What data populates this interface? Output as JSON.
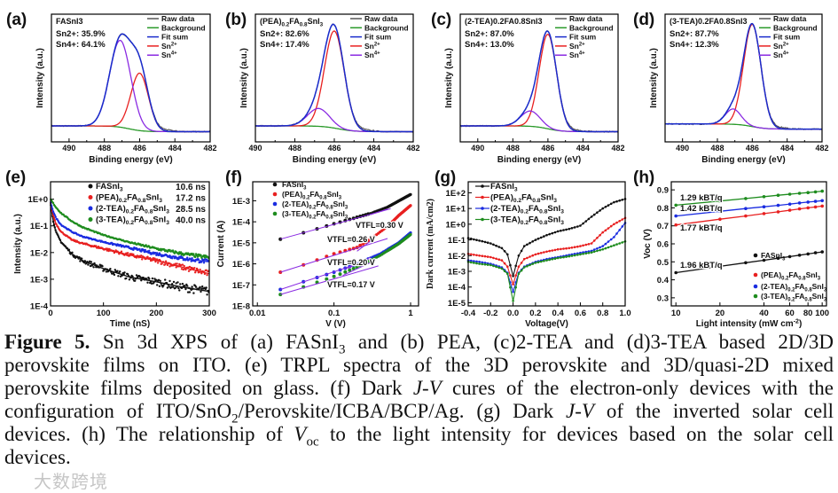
{
  "colors": {
    "raw": "#555555",
    "background": "#2a9a2a",
    "fit": "#1a2ccc",
    "sn2": "#e82020",
    "sn4": "#8a2be2",
    "black": "#111111",
    "red": "#e82020",
    "blue": "#1a2ce0",
    "green": "#1e8c1e",
    "fitline": "#8a2be2"
  },
  "figure": {
    "caption_lines": [
      "Figure 5. Sn 3d XPS of (a) FASnI3 and (b) PEA, (c)2-TEA and (d)3-TEA based 2D/3D",
      "perovskite films on ITO. (e) TRPL spectra of the 3D perovskite and 3D/quasi-2D mixed",
      "perovskite films deposited on glass. (f) Dark J-V cures of the electron-only devices with the",
      "configuration of ITO/SnO2/Perovskite/ICBA/BCP/Ag. (g) Dark J-V of the inverted solar cell",
      "devices. (h) The relationship of Voc to the light intensity for devices based on the solar cell",
      "devices."
    ],
    "watermark": "大数跨境"
  },
  "chart_data": [
    {
      "panel": "(a)",
      "type": "line",
      "sample": "FASnI3",
      "annotations": [
        "Sn2+: 35.9%",
        "Sn4+: 64.1%"
      ],
      "xlabel": "Binding energy (eV)",
      "ylabel": "Intensity (a.u.)",
      "xlim": [
        491,
        482
      ],
      "ylim": [
        0,
        100
      ],
      "xticks": [
        {
          "value": 490,
          "label": "490"
        },
        {
          "value": 488,
          "label": "488"
        },
        {
          "value": 486,
          "label": "486"
        },
        {
          "value": 484,
          "label": "484"
        },
        {
          "value": 482,
          "label": "482"
        }
      ],
      "legend": [
        "Raw data",
        "Background",
        "Fit sum",
        "Sn2+",
        "Sn4+"
      ],
      "background": {
        "high_be_level": 12.5,
        "low_be_level": 8,
        "step_center": 486.6
      },
      "peaks": [
        {
          "name": "Sn2+",
          "center": 486.0,
          "amplitude": 45,
          "sigma": 0.5
        },
        {
          "name": "Sn4+",
          "center": 487.1,
          "amplitude": 68,
          "sigma": 0.6
        }
      ]
    },
    {
      "panel": "(b)",
      "type": "line",
      "sample": "(PEA)0.2FA0.8SnI3",
      "annotations": [
        "Sn2+: 82.6%",
        "Sn4+: 17.4%"
      ],
      "xlabel": "Binding energy (eV)",
      "ylabel": "Intensity (a.u.)",
      "xlim": [
        490,
        482
      ],
      "ylim": [
        0,
        100
      ],
      "xticks": [
        {
          "value": 490,
          "label": "490"
        },
        {
          "value": 488,
          "label": "488"
        },
        {
          "value": 486,
          "label": "486"
        },
        {
          "value": 484,
          "label": "484"
        },
        {
          "value": 482,
          "label": "482"
        }
      ],
      "legend": [
        "Raw data",
        "Background",
        "Fit sum",
        "Sn2+",
        "Sn4+"
      ],
      "background": {
        "high_be_level": 12.5,
        "low_be_level": 8,
        "step_center": 485.8
      },
      "peaks": [
        {
          "name": "Sn2+",
          "center": 486.0,
          "amplitude": 76,
          "sigma": 0.5
        },
        {
          "name": "Sn4+",
          "center": 486.8,
          "amplitude": 14,
          "sigma": 0.55
        }
      ]
    },
    {
      "panel": "(c)",
      "type": "line",
      "sample": "(2-TEA)0.2FA0.8SnI3",
      "annotations": [
        "Sn2+: 87.0%",
        "Sn4+: 13.0%"
      ],
      "xlabel": "Binding energy (eV)",
      "ylabel": "Intensity (a.u.)",
      "xlim": [
        491,
        482
      ],
      "ylim": [
        0,
        100
      ],
      "xticks": [
        {
          "value": 490,
          "label": "490"
        },
        {
          "value": 488,
          "label": "488"
        },
        {
          "value": 486,
          "label": "486"
        },
        {
          "value": 484,
          "label": "484"
        },
        {
          "value": 482,
          "label": "482"
        }
      ],
      "legend": [
        "Raw data",
        "Background",
        "Fit sum",
        "Sn2+",
        "Sn4+"
      ],
      "background": {
        "high_be_level": 12.5,
        "low_be_level": 8,
        "step_center": 486.0
      },
      "peaks": [
        {
          "name": "Sn2+",
          "center": 486.0,
          "amplitude": 74,
          "sigma": 0.5
        },
        {
          "name": "Sn4+",
          "center": 487.0,
          "amplitude": 12,
          "sigma": 0.55
        }
      ]
    },
    {
      "panel": "(d)",
      "type": "line",
      "sample": "(3-TEA)0.2FA0.8SnI3",
      "annotations": [
        "Sn2+: 87.7%",
        "Sn4+: 12.3%"
      ],
      "xlabel": "Binding energy (eV)",
      "ylabel": "Intensity (a.u.)",
      "xlim": [
        491,
        482
      ],
      "ylim": [
        0,
        100
      ],
      "xticks": [
        {
          "value": 490,
          "label": "490"
        },
        {
          "value": 488,
          "label": "488"
        },
        {
          "value": 486,
          "label": "486"
        },
        {
          "value": 484,
          "label": "484"
        },
        {
          "value": 482,
          "label": "482"
        }
      ],
      "legend": [
        "Raw data",
        "Background",
        "Fit sum",
        "Sn2+",
        "Sn4+"
      ],
      "background": {
        "high_be_level": 14,
        "low_be_level": 10,
        "step_center": 486.0
      },
      "peaks": [
        {
          "name": "Sn2+",
          "center": 486.0,
          "amplitude": 80,
          "sigma": 0.5
        },
        {
          "name": "Sn4+",
          "center": 487.1,
          "amplitude": 12,
          "sigma": 0.45
        }
      ]
    },
    {
      "panel": "(e)",
      "type": "scatter",
      "xlabel": "Time (nS)",
      "ylabel": "Intensity (a.u.)",
      "xscale": "linear",
      "yscale": "log",
      "xlim": [
        0,
        300
      ],
      "ylim": [
        0.0001,
        4.5
      ],
      "xticks": [
        {
          "value": 0,
          "label": "0"
        },
        {
          "value": 100,
          "label": "100"
        },
        {
          "value": 200,
          "label": "200"
        },
        {
          "value": 300,
          "label": "300"
        }
      ],
      "yticks": [
        {
          "value": 1,
          "label": "1E+0"
        },
        {
          "value": 0.1,
          "label": "1E-1"
        },
        {
          "value": 0.01,
          "label": "1E-2"
        },
        {
          "value": 0.001,
          "label": "1E-3"
        },
        {
          "value": 0.0001,
          "label": "1E-4"
        }
      ],
      "x": [
        0,
        5,
        10,
        20,
        40,
        60,
        100,
        150,
        200,
        250,
        300
      ],
      "series": [
        {
          "name": "FASnI3",
          "lifetime": "10.6 ns",
          "color": "black",
          "values": [
            0.7,
            0.15,
            0.06,
            0.025,
            0.009,
            0.005,
            0.0025,
            0.0012,
            0.0008,
            0.0005,
            0.00035
          ]
        },
        {
          "name": "(PEA)0.2FA0.8SnI3",
          "lifetime": "17.2 ns",
          "color": "red",
          "values": [
            0.75,
            0.25,
            0.12,
            0.06,
            0.03,
            0.022,
            0.014,
            0.008,
            0.005,
            0.0028,
            0.0016
          ]
        },
        {
          "name": "(2-TEA)0.2FA0.8SnI3",
          "lifetime": "28.5 ns",
          "color": "blue",
          "values": [
            0.8,
            0.35,
            0.2,
            0.11,
            0.06,
            0.04,
            0.025,
            0.015,
            0.009,
            0.006,
            0.0045
          ]
        },
        {
          "name": "(3-TEA)0.2FA0.8SnI3",
          "lifetime": "40.0 ns",
          "color": "green",
          "values": [
            1.0,
            0.7,
            0.5,
            0.3,
            0.15,
            0.09,
            0.045,
            0.024,
            0.014,
            0.009,
            0.0065
          ]
        }
      ]
    },
    {
      "panel": "(f)",
      "type": "scatter",
      "xlabel": "V (V)",
      "ylabel": "Current (A)",
      "xscale": "log",
      "yscale": "log",
      "xlim": [
        0.0087,
        1.27
      ],
      "ylim": [
        1e-08,
        0.008
      ],
      "xticks": [
        {
          "value": 0.01,
          "label": "0.01"
        },
        {
          "value": 0.1,
          "label": "0.1"
        },
        {
          "value": 1,
          "label": "1"
        }
      ],
      "yticks": [
        {
          "value": 0.001,
          "label": "1E-3"
        },
        {
          "value": 0.0001,
          "label": "1E-4"
        },
        {
          "value": 1e-05,
          "label": "1E-5"
        },
        {
          "value": 1e-06,
          "label": "1E-6"
        },
        {
          "value": 1e-07,
          "label": "1E-7"
        },
        {
          "value": 1e-08,
          "label": "1E-8"
        }
      ],
      "series": [
        {
          "name": "FASnI3",
          "color": "black",
          "vtfl": "VTFL=0.30 V",
          "points": [
            [
              0.02,
              1.5e-05
            ],
            [
              0.04,
              3e-05
            ],
            [
              0.1,
              8e-05
            ],
            [
              0.3,
              0.00025
            ],
            [
              0.5,
              0.0005
            ],
            [
              1,
              0.002
            ]
          ],
          "fits": [
            [
              [
                0.02,
                1.5e-05
              ],
              [
                0.55,
                0.00042
              ]
            ],
            [
              [
                0.3,
                0.00022
              ],
              [
                0.5,
                0.0004
              ]
            ]
          ]
        },
        {
          "name": "(PEA)0.2FA0.8SnI3",
          "color": "red",
          "vtfl": "VTFL=0.26 V",
          "points": [
            [
              0.02,
              4e-07
            ],
            [
              0.04,
              9e-07
            ],
            [
              0.1,
              3e-06
            ],
            [
              0.2,
              6e-06
            ],
            [
              0.3,
              1.5e-05
            ],
            [
              0.5,
              6e-05
            ],
            [
              0.7,
              0.0002
            ],
            [
              1,
              0.0006
            ]
          ],
          "fits": [
            [
              [
                0.02,
                4e-07
              ],
              [
                0.5,
                1.6e-05
              ]
            ],
            [
              [
                0.2,
                4e-06
              ],
              [
                0.3,
                1.2e-05
              ]
            ]
          ]
        },
        {
          "name": "(2-TEA)0.2FA0.8SnI3",
          "color": "blue",
          "vtfl": "VTFL=0.20 V",
          "points": [
            [
              0.02,
              6e-08
            ],
            [
              0.04,
              1.4e-07
            ],
            [
              0.1,
              4e-07
            ],
            [
              0.2,
              1e-06
            ],
            [
              0.4,
              3e-06
            ],
            [
              0.7,
              1e-05
            ],
            [
              1,
              3e-05
            ]
          ],
          "fits": [
            [
              [
                0.02,
                6e-08
              ],
              [
                0.32,
                1.7e-06
              ]
            ],
            [
              [
                0.15,
                6e-07
              ],
              [
                0.3,
                2e-06
              ]
            ]
          ]
        },
        {
          "name": "(3-TEA)0.2FA0.8SnI3",
          "color": "green",
          "vtfl": "VTFL=0.17 V",
          "points": [
            [
              0.02,
              3.5e-08
            ],
            [
              0.04,
              8e-08
            ],
            [
              0.1,
              2.5e-07
            ],
            [
              0.2,
              7e-07
            ],
            [
              0.4,
              2.5e-06
            ],
            [
              0.7,
              9e-06
            ],
            [
              1,
              2.5e-05
            ]
          ],
          "fits": [
            [
              [
                0.02,
                3.5e-08
              ],
              [
                0.38,
                8e-07
              ]
            ],
            [
              [
                0.13,
                2.8e-07
              ],
              [
                0.35,
                1.5e-06
              ]
            ]
          ]
        }
      ]
    },
    {
      "panel": "(g)",
      "type": "line",
      "xlabel": "Voltage(V)",
      "ylabel": "Dark current (mA/cm2)",
      "xscale": "linear",
      "yscale": "log",
      "xlim": [
        -0.4,
        1.0
      ],
      "ylim": [
        6.3e-06,
        500
      ],
      "xticks": [
        {
          "value": -0.4,
          "label": "-0.4"
        },
        {
          "value": -0.2,
          "label": "-0.2"
        },
        {
          "value": 0,
          "label": "0.0"
        },
        {
          "value": 0.2,
          "label": "0.2"
        },
        {
          "value": 0.4,
          "label": "0.4"
        },
        {
          "value": 0.6,
          "label": "0.6"
        },
        {
          "value": 0.8,
          "label": "0.8"
        },
        {
          "value": 1.0,
          "label": "1.0"
        }
      ],
      "yticks": [
        {
          "value": 100,
          "label": "1E+2"
        },
        {
          "value": 10,
          "label": "1E+1"
        },
        {
          "value": 1,
          "label": "1E+0"
        },
        {
          "value": 0.1,
          "label": "1E-1"
        },
        {
          "value": 0.01,
          "label": "1E-2"
        },
        {
          "value": 0.001,
          "label": "1E-3"
        },
        {
          "value": 0.0001,
          "label": "1E-4"
        },
        {
          "value": 1e-05,
          "label": "1E-5"
        }
      ],
      "x": [
        -0.4,
        -0.3,
        -0.2,
        -0.1,
        -0.05,
        0,
        0.05,
        0.1,
        0.2,
        0.3,
        0.4,
        0.5,
        0.6,
        0.7,
        0.8,
        0.9,
        1.0
      ],
      "series": [
        {
          "name": "FASnI3",
          "color": "black",
          "values": [
            0.13,
            0.09,
            0.06,
            0.03,
            0.012,
            0.0005,
            0.01,
            0.04,
            0.1,
            0.2,
            0.35,
            0.5,
            0.8,
            3,
            10,
            25,
            40
          ]
        },
        {
          "name": "(PEA)0.2FA0.8SnI3",
          "color": "red",
          "values": [
            0.013,
            0.01,
            0.008,
            0.005,
            0.002,
            0.00015,
            0.002,
            0.006,
            0.012,
            0.018,
            0.025,
            0.03,
            0.04,
            0.06,
            0.3,
            1,
            2.5
          ]
        },
        {
          "name": "(2-TEA)0.2FA0.8SnI3",
          "color": "blue",
          "values": [
            0.005,
            0.004,
            0.003,
            0.0018,
            0.0008,
            5e-05,
            0.0008,
            0.002,
            0.004,
            0.006,
            0.008,
            0.011,
            0.015,
            0.02,
            0.04,
            0.15,
            1.2
          ]
        },
        {
          "name": "(3-TEA)0.2FA0.8SnI3",
          "color": "green",
          "values": [
            0.004,
            0.003,
            0.0025,
            0.0015,
            0.0007,
            1.3e-05,
            0.0007,
            0.0018,
            0.0035,
            0.005,
            0.007,
            0.009,
            0.012,
            0.016,
            0.025,
            0.045,
            0.08
          ]
        }
      ]
    },
    {
      "panel": "(h)",
      "type": "scatter",
      "xlabel": "Light intensity (mW cm-2)",
      "ylabel": "Voc (V)",
      "xscale": "log",
      "yscale": "linear",
      "xlim": [
        9.3,
        107
      ],
      "ylim": [
        0.255,
        0.945
      ],
      "xticks": [
        {
          "value": 10,
          "label": "10"
        },
        {
          "value": 20,
          "label": "20"
        },
        {
          "value": 40,
          "label": "40"
        },
        {
          "value": 60,
          "label": "60"
        },
        {
          "value": 80,
          "label": "80"
        },
        {
          "value": 100,
          "label": "100"
        }
      ],
      "yticks": [
        {
          "value": 0.3,
          "label": "0.3"
        },
        {
          "value": 0.4,
          "label": "0.4"
        },
        {
          "value": 0.5,
          "label": "0.5"
        },
        {
          "value": 0.6,
          "label": "0.6"
        },
        {
          "value": 0.7,
          "label": "0.7"
        },
        {
          "value": 0.8,
          "label": "0.8"
        },
        {
          "value": 0.9,
          "label": "0.9"
        }
      ],
      "x": [
        10,
        20,
        30,
        40,
        50,
        60,
        70,
        80,
        90,
        100
      ],
      "series": [
        {
          "name": "FASnI3",
          "color": "black",
          "slope": "1.96 kBT/q",
          "values": [
            0.44,
            0.475,
            0.495,
            0.509,
            0.52,
            0.529,
            0.537,
            0.544,
            0.55,
            0.555
          ]
        },
        {
          "name": "(PEA)0.2FA0.8SnI3",
          "color": "red",
          "slope": "1.77 kBT/q",
          "values": [
            0.705,
            0.737,
            0.755,
            0.768,
            0.778,
            0.787,
            0.794,
            0.8,
            0.805,
            0.81
          ]
        },
        {
          "name": "(2-TEA)0.2FA0.8SnI3",
          "color": "blue",
          "slope": "1.42 kBT/q",
          "values": [
            0.755,
            0.781,
            0.796,
            0.806,
            0.814,
            0.821,
            0.827,
            0.832,
            0.836,
            0.84
          ]
        },
        {
          "name": "(3-TEA)0.2FA0.8SnI3",
          "color": "green",
          "slope": "1.29 kBT/q",
          "values": [
            0.815,
            0.838,
            0.852,
            0.862,
            0.87,
            0.876,
            0.881,
            0.885,
            0.889,
            0.893
          ]
        }
      ]
    }
  ]
}
